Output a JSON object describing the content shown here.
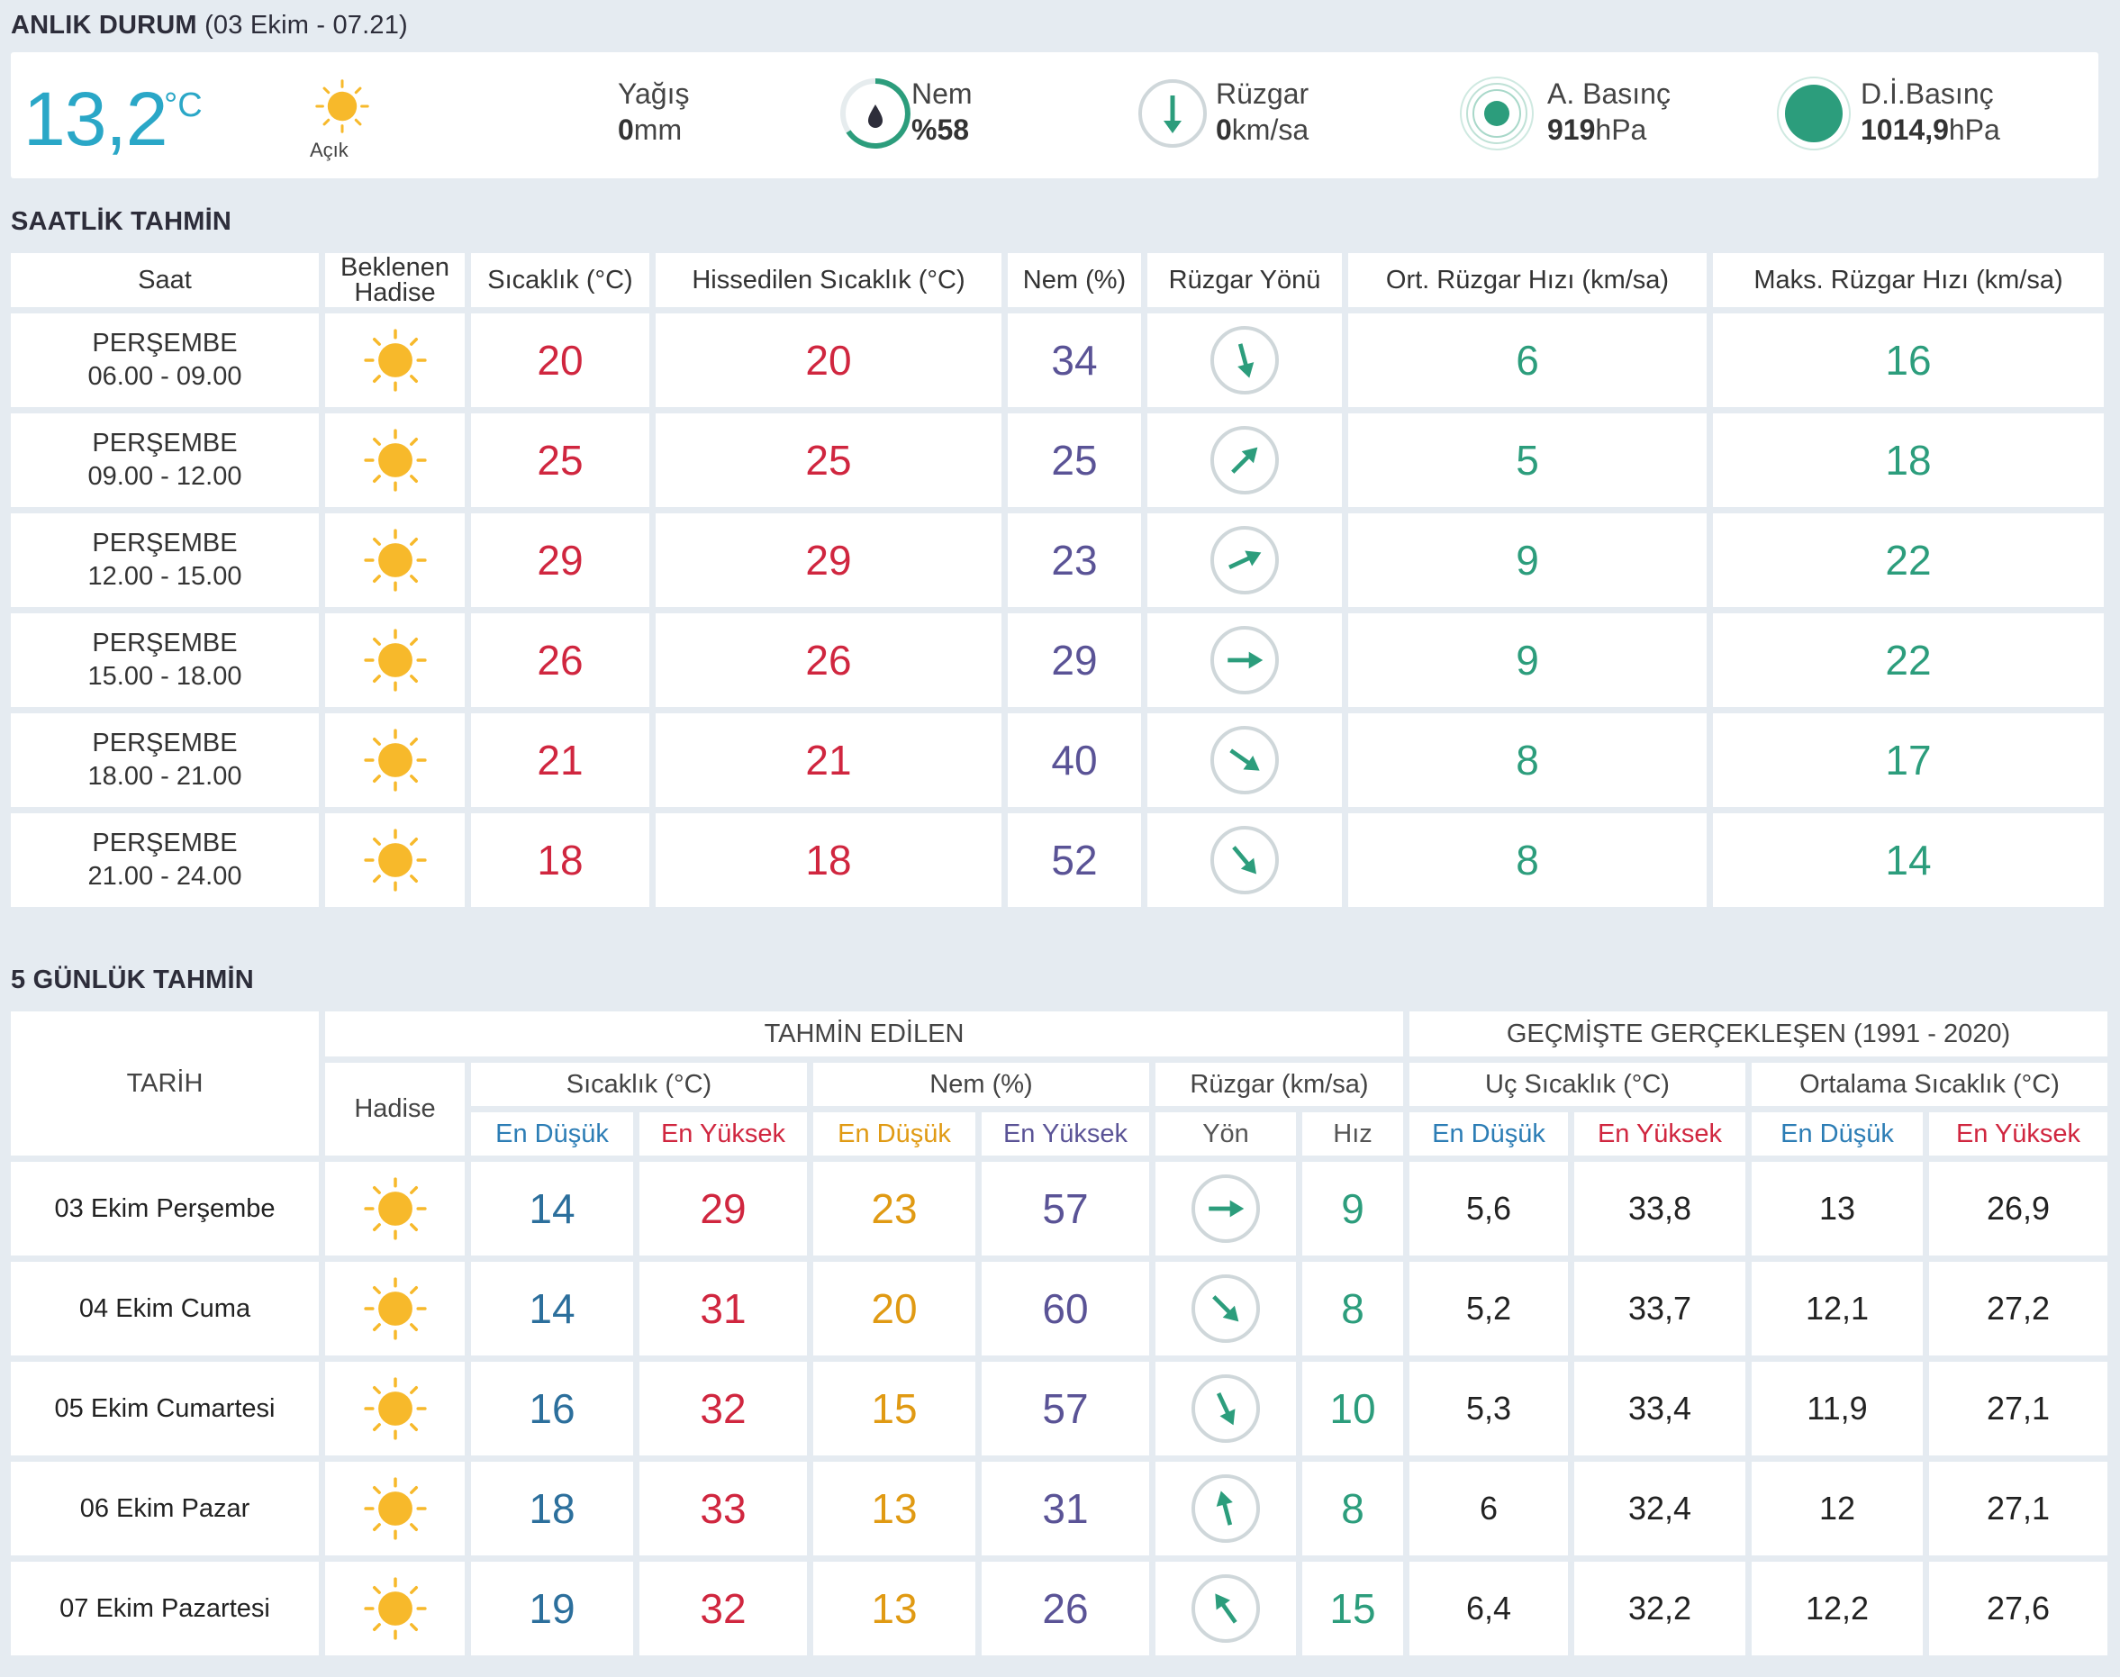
{
  "anlik": {
    "title": "ANLIK DURUM",
    "date": "(03 Ekim - 07.21)",
    "temp": "13,2",
    "unit": "°C",
    "condition": "Açık",
    "yagis_label": "Yağış",
    "yagis_value": "0",
    "yagis_unit": "mm",
    "nem_label": "Nem",
    "nem_value": "%58",
    "ruzgar_label": "Rüzgar",
    "ruzgar_value": "0",
    "ruzgar_unit": "km/sa",
    "abasinc_label": "A. Basınç",
    "abasinc_value": "919",
    "abasinc_unit": "hPa",
    "dibasinc_label": "D.İ.Basınç",
    "dibasinc_value": "1014,9",
    "dibasinc_unit": "hPa",
    "icons": [
      "sun-icon",
      "humidity-drop-icon",
      "wind-compass-icon",
      "pressure-icon"
    ],
    "colors": {
      "accent": "#2aa7c7",
      "green": "#2c9d7c",
      "red": "#d0263f",
      "purple": "#5a5396"
    }
  },
  "saatlik": {
    "title": "SAATLİK TAHMİN",
    "headers": [
      "Saat",
      "Beklenen Hadise",
      "Sıcaklık (°C)",
      "Hissedilen Sıcaklık (°C)",
      "Nem (%)",
      "Rüzgar Yönü",
      "Ort. Rüzgar Hızı (km/sa)",
      "Maks. Rüzgar Hızı (km/sa)"
    ],
    "rows": [
      {
        "day": "PERŞEMBE",
        "time": "06.00 - 09.00",
        "temp": "20",
        "feel": "20",
        "nem": "34",
        "dir": 165,
        "avg": "6",
        "max": "16"
      },
      {
        "day": "PERŞEMBE",
        "time": "09.00 - 12.00",
        "temp": "25",
        "feel": "25",
        "nem": "25",
        "dir": 45,
        "avg": "5",
        "max": "18"
      },
      {
        "day": "PERŞEMBE",
        "time": "12.00 - 15.00",
        "temp": "29",
        "feel": "29",
        "nem": "23",
        "dir": 65,
        "avg": "9",
        "max": "22"
      },
      {
        "day": "PERŞEMBE",
        "time": "15.00 - 18.00",
        "temp": "26",
        "feel": "26",
        "nem": "29",
        "dir": 90,
        "avg": "9",
        "max": "22"
      },
      {
        "day": "PERŞEMBE",
        "time": "18.00 - 21.00",
        "temp": "21",
        "feel": "21",
        "nem": "40",
        "dir": 125,
        "avg": "8",
        "max": "17"
      },
      {
        "day": "PERŞEMBE",
        "time": "21.00 - 24.00",
        "temp": "18",
        "feel": "18",
        "nem": "52",
        "dir": 140,
        "avg": "8",
        "max": "14"
      }
    ]
  },
  "gunluk": {
    "title": "5 GÜNLÜK TAHMİN",
    "h_tarih": "TARİH",
    "h_tahmin": "TAHMİN EDİLEN",
    "h_gecmis": "GEÇMİŞTE GERÇEKLEŞEN (1991 - 2020)",
    "h_hadise": "Hadise",
    "h_sicaklik": "Sıcaklık (°C)",
    "h_nem": "Nem (%)",
    "h_ruzgar": "Rüzgar (km/sa)",
    "h_uc": "Uç Sıcaklık (°C)",
    "h_ort": "Ortalama Sıcaklık (°C)",
    "sub": {
      "dusuk": "En Düşük",
      "yuksek": "En Yüksek",
      "yon": "Yön",
      "hiz": "Hız"
    },
    "rows": [
      {
        "date": "03 Ekim Perşembe",
        "tmin": "14",
        "tmax": "29",
        "nmin": "23",
        "nmax": "57",
        "dir": 90,
        "hiz": "9",
        "ucmin": "5,6",
        "ucmax": "33,8",
        "ortmin": "13",
        "ortmax": "26,9"
      },
      {
        "date": "04 Ekim Cuma",
        "tmin": "14",
        "tmax": "31",
        "nmin": "20",
        "nmax": "60",
        "dir": 135,
        "hiz": "8",
        "ucmin": "5,2",
        "ucmax": "33,7",
        "ortmin": "12,1",
        "ortmax": "27,2"
      },
      {
        "date": "05 Ekim Cumartesi",
        "tmin": "16",
        "tmax": "32",
        "nmin": "15",
        "nmax": "57",
        "dir": 155,
        "hiz": "10",
        "ucmin": "5,3",
        "ucmax": "33,4",
        "ortmin": "11,9",
        "ortmax": "27,1"
      },
      {
        "date": "06 Ekim Pazar",
        "tmin": "18",
        "tmax": "33",
        "nmin": "13",
        "nmax": "31",
        "dir": 345,
        "hiz": "8",
        "ucmin": "6",
        "ucmax": "32,4",
        "ortmin": "12",
        "ortmax": "27,1"
      },
      {
        "date": "07 Ekim Pazartesi",
        "tmin": "19",
        "tmax": "32",
        "nmin": "13",
        "nmax": "26",
        "dir": 325,
        "hiz": "15",
        "ucmin": "6,4",
        "ucmax": "32,2",
        "ortmin": "12,2",
        "ortmax": "27,6"
      }
    ]
  }
}
